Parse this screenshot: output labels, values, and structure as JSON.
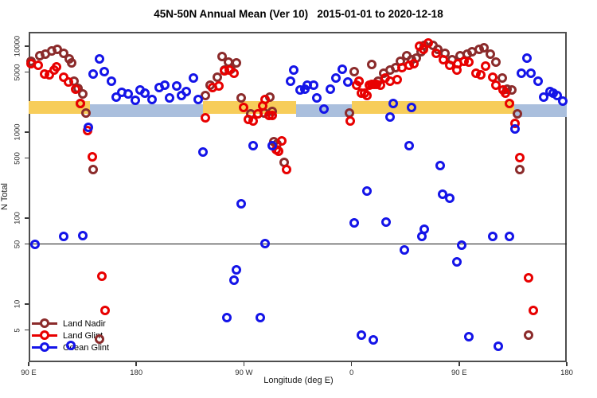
{
  "title": "45N-50N Annual Mean (Ver 10)   2015-01-01 to 2020-12-18",
  "axes": {
    "x": {
      "label": "Longitude (deg E)",
      "range": [
        90,
        540
      ],
      "ticks": [
        {
          "lon": 90,
          "label": "90 E"
        },
        {
          "lon": 180,
          "label": "180"
        },
        {
          "lon": 270,
          "label": "90 W"
        },
        {
          "lon": 360,
          "label": "0"
        },
        {
          "lon": 450,
          "label": "90 E"
        },
        {
          "lon": 540,
          "label": "180"
        }
      ]
    },
    "y": {
      "label": "N Total",
      "scale": "log",
      "ticks": [
        10000,
        5000,
        1000,
        500,
        100,
        50,
        10,
        5
      ]
    }
  },
  "legend": {
    "items": [
      {
        "label": "Land Nadir",
        "color": "#8B2B2B"
      },
      {
        "label": "Land Glint",
        "color": "#E80000"
      },
      {
        "label": "Ocean Glint",
        "color": "#1414E8"
      }
    ]
  },
  "chart_data": {
    "type": "scatter",
    "xlabel": "Longitude (deg E)",
    "ylabel": "N Total",
    "x_range": [
      90,
      540
    ],
    "y_log_range": [
      2.5,
      14700
    ],
    "reference_line": {
      "value": 50,
      "color": "#1a1a1a"
    },
    "bands": [
      {
        "name": "land-coverage-band",
        "color": "#F7CD5A",
        "value_range": [
          1620,
          2280
        ],
        "segments_lon": [
          [
            90,
            141
          ],
          [
            236,
            314
          ],
          [
            360,
            496
          ]
        ]
      },
      {
        "name": "ocean-coverage-band",
        "color": "#AABFDD",
        "value_range": [
          1500,
          2100
        ],
        "segments_lon": [
          [
            141,
            236
          ],
          [
            314,
            360
          ],
          [
            496,
            540
          ]
        ]
      }
    ],
    "series": [
      {
        "name": "Land Nadir",
        "color": "#8B2B2B",
        "points": [
          [
            92,
            6700
          ],
          [
            99,
            7700
          ],
          [
            104,
            8100
          ],
          [
            109,
            8800
          ],
          [
            114,
            9200
          ],
          [
            119,
            8300
          ],
          [
            124,
            7100
          ],
          [
            126,
            6400
          ],
          [
            128,
            3900
          ],
          [
            131,
            3200
          ],
          [
            133,
            2150
          ],
          [
            135,
            2800
          ],
          [
            138,
            1670
          ],
          [
            144,
            370
          ],
          [
            149,
            3.9
          ],
          [
            238,
            2670
          ],
          [
            242,
            3500
          ],
          [
            248,
            4400
          ],
          [
            252,
            7600
          ],
          [
            254,
            5300
          ],
          [
            257,
            6500
          ],
          [
            259,
            5400
          ],
          [
            264,
            6400
          ],
          [
            268,
            2500
          ],
          [
            276,
            1630
          ],
          [
            287,
            1670
          ],
          [
            292,
            2560
          ],
          [
            294,
            1740
          ],
          [
            295,
            780
          ],
          [
            298,
            730
          ],
          [
            304,
            445
          ],
          [
            358,
            1670
          ],
          [
            362,
            5100
          ],
          [
            366,
            3900
          ],
          [
            377,
            6100
          ],
          [
            382,
            3900
          ],
          [
            387,
            4850
          ],
          [
            392,
            5280
          ],
          [
            397,
            5600
          ],
          [
            401,
            6700
          ],
          [
            406,
            7700
          ],
          [
            410,
            6950
          ],
          [
            414,
            7260
          ],
          [
            418,
            8600
          ],
          [
            421,
            10200
          ],
          [
            428,
            10200
          ],
          [
            432,
            9200
          ],
          [
            438,
            8300
          ],
          [
            444,
            6950
          ],
          [
            451,
            7700
          ],
          [
            457,
            8100
          ],
          [
            461,
            8600
          ],
          [
            467,
            9200
          ],
          [
            471,
            9600
          ],
          [
            476,
            8100
          ],
          [
            481,
            6500
          ],
          [
            486,
            4260
          ],
          [
            490,
            3160
          ],
          [
            494,
            3080
          ],
          [
            499,
            1630
          ],
          [
            501,
            370
          ],
          [
            508,
            4.4
          ]
        ]
      },
      {
        "name": "Land Glint",
        "color": "#E80000",
        "points": [
          [
            92,
            6250
          ],
          [
            98,
            6000
          ],
          [
            103,
            4700
          ],
          [
            107,
            4600
          ],
          [
            111,
            5300
          ],
          [
            113,
            5700
          ],
          [
            119,
            4350
          ],
          [
            123,
            3830
          ],
          [
            129,
            3160
          ],
          [
            133,
            2150
          ],
          [
            139,
            1040
          ],
          [
            143,
            516
          ],
          [
            151,
            21
          ],
          [
            154,
            8.4
          ],
          [
            238,
            1470
          ],
          [
            244,
            3300
          ],
          [
            249,
            3440
          ],
          [
            254,
            5160
          ],
          [
            258,
            5280
          ],
          [
            262,
            4850
          ],
          [
            270,
            1930
          ],
          [
            274,
            1400
          ],
          [
            278,
            1340
          ],
          [
            282,
            1630
          ],
          [
            286,
            2020
          ],
          [
            288,
            2390
          ],
          [
            291,
            1560
          ],
          [
            294,
            1560
          ],
          [
            297,
            628
          ],
          [
            299,
            600
          ],
          [
            302,
            797
          ],
          [
            306,
            367
          ],
          [
            359,
            1350
          ],
          [
            364,
            3520
          ],
          [
            366,
            3900
          ],
          [
            368,
            2840
          ],
          [
            371,
            2840
          ],
          [
            373,
            2670
          ],
          [
            375,
            3520
          ],
          [
            377,
            3630
          ],
          [
            379,
            3630
          ],
          [
            381,
            3630
          ],
          [
            384,
            3520
          ],
          [
            388,
            4260
          ],
          [
            392,
            3910
          ],
          [
            398,
            4070
          ],
          [
            402,
            5620
          ],
          [
            408,
            5990
          ],
          [
            412,
            6250
          ],
          [
            417,
            10000
          ],
          [
            420,
            9180
          ],
          [
            424,
            11000
          ],
          [
            431,
            8260
          ],
          [
            437,
            6950
          ],
          [
            442,
            5990
          ],
          [
            448,
            5280
          ],
          [
            449,
            6250
          ],
          [
            454,
            6670
          ],
          [
            458,
            6530
          ],
          [
            464,
            4850
          ],
          [
            468,
            4640
          ],
          [
            472,
            5870
          ],
          [
            478,
            4350
          ],
          [
            481,
            3520
          ],
          [
            487,
            3080
          ],
          [
            489,
            2840
          ],
          [
            492,
            2150
          ],
          [
            497,
            1260
          ],
          [
            501,
            510
          ],
          [
            508,
            20
          ],
          [
            512,
            8.4
          ]
        ]
      },
      {
        "name": "Ocean Glint",
        "color": "#1414E8",
        "points": [
          [
            95,
            50
          ],
          [
            119,
            61
          ],
          [
            125,
            3.3
          ],
          [
            135,
            62
          ],
          [
            140,
            1140
          ],
          [
            144,
            4740
          ],
          [
            149,
            7100
          ],
          [
            153,
            5070
          ],
          [
            159,
            3910
          ],
          [
            163,
            2560
          ],
          [
            168,
            2900
          ],
          [
            173,
            2790
          ],
          [
            179,
            2340
          ],
          [
            183,
            3080
          ],
          [
            187,
            2840
          ],
          [
            193,
            2390
          ],
          [
            199,
            3300
          ],
          [
            204,
            3520
          ],
          [
            208,
            2500
          ],
          [
            214,
            3440
          ],
          [
            218,
            2670
          ],
          [
            222,
            2960
          ],
          [
            228,
            4260
          ],
          [
            232,
            2390
          ],
          [
            236,
            590
          ],
          [
            256,
            7
          ],
          [
            262,
            19
          ],
          [
            264,
            25
          ],
          [
            268,
            147
          ],
          [
            278,
            700
          ],
          [
            284,
            7
          ],
          [
            288,
            51
          ],
          [
            294,
            690
          ],
          [
            309,
            3910
          ],
          [
            312,
            5280
          ],
          [
            317,
            3080
          ],
          [
            321,
            3160
          ],
          [
            323,
            3520
          ],
          [
            328,
            3520
          ],
          [
            331,
            2500
          ],
          [
            337,
            1860
          ],
          [
            342,
            3160
          ],
          [
            347,
            4260
          ],
          [
            352,
            5400
          ],
          [
            357,
            3830
          ],
          [
            362,
            88
          ],
          [
            368,
            4.4
          ],
          [
            373,
            206
          ],
          [
            378,
            3.8
          ],
          [
            389,
            90
          ],
          [
            392,
            1500
          ],
          [
            395,
            2150
          ],
          [
            404,
            43
          ],
          [
            408,
            700
          ],
          [
            410,
            1930
          ],
          [
            419,
            61
          ],
          [
            421,
            74
          ],
          [
            434,
            410
          ],
          [
            436,
            190
          ],
          [
            442,
            170
          ],
          [
            448,
            31
          ],
          [
            452,
            48
          ],
          [
            458,
            4.2
          ],
          [
            478,
            61
          ],
          [
            483,
            3.2
          ],
          [
            492,
            61
          ],
          [
            497,
            1090
          ],
          [
            502,
            4850
          ],
          [
            507,
            7260
          ],
          [
            510,
            4850
          ],
          [
            516,
            3910
          ],
          [
            521,
            2560
          ],
          [
            526,
            2960
          ],
          [
            529,
            2840
          ],
          [
            532,
            2670
          ],
          [
            537,
            2290
          ]
        ]
      }
    ]
  }
}
